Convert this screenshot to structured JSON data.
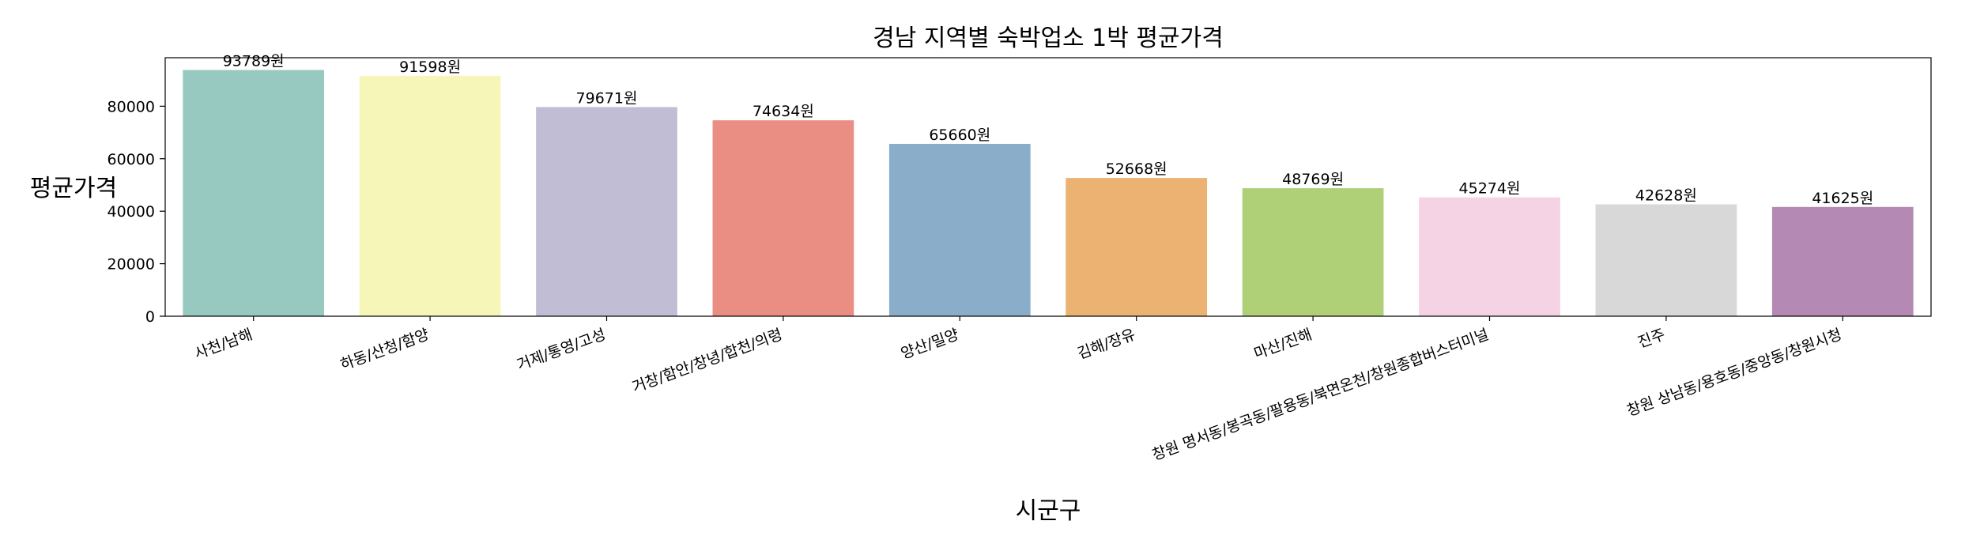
{
  "chart_data": {
    "type": "bar",
    "title": "경남 지역별 숙박업소 1박 평균가격",
    "xlabel": "시군구",
    "ylabel": "평균가격",
    "categories": [
      "사천/남해",
      "하동/산청/함양",
      "거제/통영/고성",
      "거창/함안/창녕/합천/의령",
      "양산/밀양",
      "김해/장유",
      "마산/진해",
      "창원 명서동/봉곡동/팔용동/북면온천/창원종합버스터미널",
      "진주",
      "창원 상남동/용호동/중앙동/창원시청"
    ],
    "values": [
      93789,
      91598,
      79671,
      74634,
      65660,
      52668,
      48769,
      45274,
      42628,
      41625
    ],
    "value_labels": [
      "93789원",
      "91598원",
      "79671원",
      "74634원",
      "65660원",
      "52668원",
      "48769원",
      "45274원",
      "42628원",
      "41625원"
    ],
    "colors": [
      "#98c9c0",
      "#f6f6b9",
      "#c1bdd5",
      "#ea8d82",
      "#8aaec9",
      "#ebb272",
      "#b0d078",
      "#f5d3e4",
      "#d8d8d8",
      "#b48ab5"
    ],
    "yticks": [
      0,
      20000,
      40000,
      60000,
      80000
    ],
    "ytick_labels": [
      "0",
      "20000",
      "40000",
      "60000",
      "80000"
    ],
    "ylim": [
      0,
      98480
    ],
    "grid": false,
    "legend": "none"
  }
}
